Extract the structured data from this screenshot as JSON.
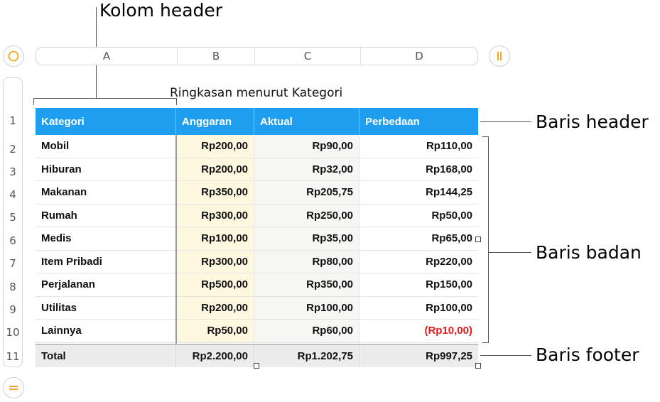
{
  "callouts": {
    "column_header": "Kolom header",
    "header_row": "Baris header",
    "body_rows": "Baris badan",
    "footer_row": "Baris footer"
  },
  "columns": [
    "A",
    "B",
    "C",
    "D"
  ],
  "row_numbers": [
    "1",
    "2",
    "3",
    "4",
    "5",
    "6",
    "7",
    "8",
    "9",
    "10",
    "11"
  ],
  "table": {
    "title": "Ringkasan menurut Kategori",
    "headers": [
      "Kategori",
      "Anggaran",
      "Aktual",
      "Perbedaan"
    ],
    "rows": [
      {
        "kategori": "Mobil",
        "anggaran": "Rp200,00",
        "aktual": "Rp90,00",
        "perbedaan": "Rp110,00"
      },
      {
        "kategori": "Hiburan",
        "anggaran": "Rp200,00",
        "aktual": "Rp32,00",
        "perbedaan": "Rp168,00"
      },
      {
        "kategori": "Makanan",
        "anggaran": "Rp350,00",
        "aktual": "Rp205,75",
        "perbedaan": "Rp144,25"
      },
      {
        "kategori": "Rumah",
        "anggaran": "Rp300,00",
        "aktual": "Rp250,00",
        "perbedaan": "Rp50,00"
      },
      {
        "kategori": "Medis",
        "anggaran": "Rp100,00",
        "aktual": "Rp35,00",
        "perbedaan": "Rp65,00"
      },
      {
        "kategori": "Item Pribadi",
        "anggaran": "Rp300,00",
        "aktual": "Rp80,00",
        "perbedaan": "Rp220,00"
      },
      {
        "kategori": "Perjalanan",
        "anggaran": "Rp500,00",
        "aktual": "Rp350,00",
        "perbedaan": "Rp150,00"
      },
      {
        "kategori": "Utilitas",
        "anggaran": "Rp200,00",
        "aktual": "Rp100,00",
        "perbedaan": "Rp100,00"
      },
      {
        "kategori": "Lainnya",
        "anggaran": "Rp50,00",
        "aktual": "Rp60,00",
        "perbedaan": "(Rp10,00)"
      }
    ],
    "footer": {
      "kategori": "Total",
      "anggaran": "Rp2.200,00",
      "aktual": "Rp1.202,75",
      "perbedaan": "Rp997,25"
    }
  },
  "colors": {
    "header_blue": "#1f9ff0",
    "accent_orange": "#f5a623",
    "negative_red": "#e01b1b",
    "budget_column_tint": "#fff8e1",
    "actual_column_tint": "#f6f6f4",
    "footer_gray": "#ececec"
  },
  "icons": {
    "top_left": "circle-select-icon",
    "top_right": "pause-bars-icon",
    "bottom_left": "equals-icon"
  }
}
